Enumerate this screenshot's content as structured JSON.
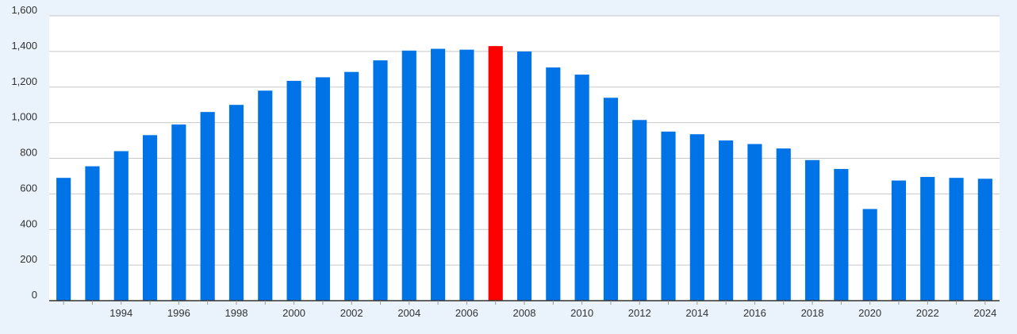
{
  "chart_data": {
    "type": "bar",
    "title": "",
    "xlabel": "",
    "ylabel": "",
    "ylim": [
      0,
      1600
    ],
    "yticks": [
      "0",
      "200",
      "400",
      "600",
      "800",
      "1,000",
      "1,200",
      "1,400",
      "1,600"
    ],
    "ytick_values": [
      0,
      200,
      400,
      600,
      800,
      1000,
      1200,
      1400,
      1600
    ],
    "categories": [
      1992,
      1993,
      1994,
      1995,
      1996,
      1997,
      1998,
      1999,
      2000,
      2001,
      2002,
      2003,
      2004,
      2005,
      2006,
      2007,
      2008,
      2009,
      2010,
      2011,
      2012,
      2013,
      2014,
      2015,
      2016,
      2017,
      2018,
      2019,
      2020,
      2021,
      2022,
      2023,
      2024
    ],
    "values": [
      690,
      755,
      840,
      930,
      990,
      1060,
      1100,
      1180,
      1235,
      1255,
      1285,
      1350,
      1405,
      1415,
      1410,
      1430,
      1400,
      1310,
      1270,
      1140,
      1015,
      950,
      935,
      900,
      880,
      855,
      790,
      740,
      515,
      675,
      695,
      690,
      685
    ],
    "xtick_labels": [
      "1994",
      "1996",
      "1998",
      "2000",
      "2002",
      "2004",
      "2006",
      "2008",
      "2010",
      "2012",
      "2014",
      "2016",
      "2018",
      "2020",
      "2022",
      "2024"
    ],
    "bar_color": "#0073e6",
    "highlight": {
      "category": 2007,
      "color": "#ff0000"
    },
    "grid": true,
    "legend": "none"
  }
}
